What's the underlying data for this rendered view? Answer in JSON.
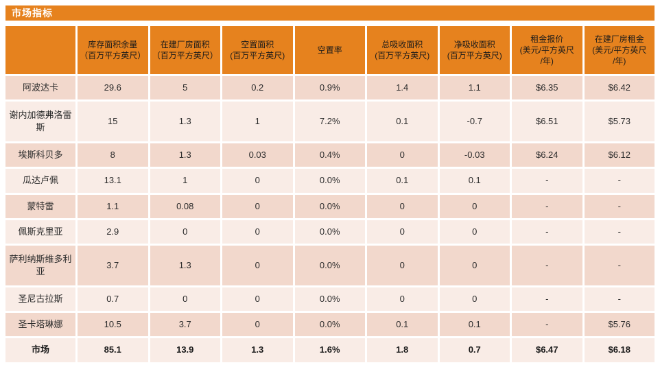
{
  "title": "市场指标",
  "colors": {
    "accent_orange": "#E6821E",
    "row_band_dark": "#F2D8CC",
    "row_band_light": "#F9ECE6",
    "title_text": "#FFFFFF",
    "header_text": "#1A1A1A",
    "value_text": "#2B2B2B"
  },
  "table": {
    "columns": [
      "",
      "库存面积余量\n（百万平方英尺）",
      "在建厂房面积\n（百万平方英尺）",
      "空置面积\n(百万平方英尺)",
      "空置率",
      "总吸收面积\n(百万平方英尺)",
      "净吸收面积\n(百万平方英尺)",
      "租金报价\n(美元/平方英尺\n/年)",
      "在建厂房租金\n(美元/平方英尺\n/年)"
    ],
    "rows": [
      {
        "name": "阿波达卡",
        "values": [
          "29.6",
          "5",
          "0.2",
          "0.9%",
          "1.4",
          "1.1",
          "$6.35",
          "$6.42"
        ]
      },
      {
        "name": "谢内加德弗洛雷斯",
        "values": [
          "15",
          "1.3",
          "1",
          "7.2%",
          "0.1",
          "-0.7",
          "$6.51",
          "$5.73"
        ]
      },
      {
        "name": "埃斯科贝多",
        "values": [
          "8",
          "1.3",
          "0.03",
          "0.4%",
          "0",
          "-0.03",
          "$6.24",
          "$6.12"
        ]
      },
      {
        "name": "瓜达卢佩",
        "values": [
          "13.1",
          "1",
          "0",
          "0.0%",
          "0.1",
          "0.1",
          "-",
          "-"
        ]
      },
      {
        "name": "蒙特雷",
        "values": [
          "1.1",
          "0.08",
          "0",
          "0.0%",
          "0",
          "0",
          "-",
          "-"
        ]
      },
      {
        "name": "佩斯克里亚",
        "values": [
          "2.9",
          "0",
          "0",
          "0.0%",
          "0",
          "0",
          "-",
          "-"
        ]
      },
      {
        "name": "萨利纳斯维多利亚",
        "values": [
          "3.7",
          "1.3",
          "0",
          "0.0%",
          "0",
          "0",
          "-",
          "-"
        ]
      },
      {
        "name": "圣尼古拉斯",
        "values": [
          "0.7",
          "0",
          "0",
          "0.0%",
          "0",
          "0",
          "-",
          "-"
        ]
      },
      {
        "name": "圣卡塔琳娜",
        "values": [
          "10.5",
          "3.7",
          "0",
          "0.0%",
          "0.1",
          "0.1",
          "-",
          "$5.76"
        ]
      },
      {
        "name": "市场",
        "values": [
          "85.1",
          "13.9",
          "1.3",
          "1.6%",
          "1.8",
          "0.7",
          "$6.47",
          "$6.18"
        ],
        "emphasis": true
      }
    ]
  }
}
